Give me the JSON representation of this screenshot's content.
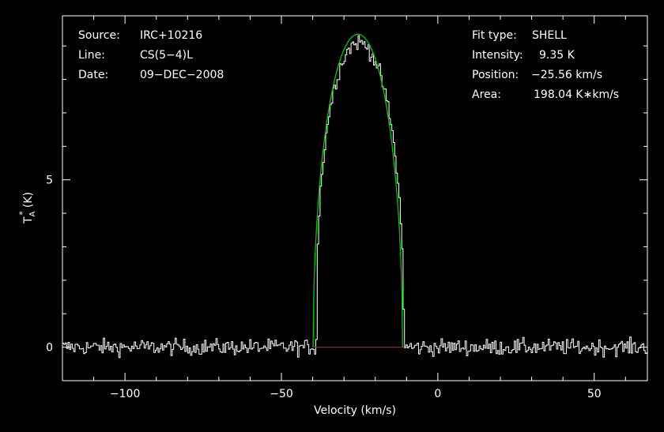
{
  "info": {
    "source_label": "Source:",
    "source_value": "IRC+10216",
    "line_label": "Line:",
    "line_value": "CS(5−4)L",
    "date_label": "Date:",
    "date_value": "09−DEC−2008",
    "fit_label": "Fit type:",
    "fit_value": "SHELL",
    "intensity_label": "Intensity:",
    "intensity_value": "9.35 K",
    "position_label": "Position:",
    "position_value": "−25.56 km/s",
    "area_label": "Area:",
    "area_value": "198.04 K∗km/s"
  },
  "chart_data": {
    "type": "line",
    "xlabel": "Velocity (km/s)",
    "ylabel_main": "T",
    "ylabel_super": "*",
    "ylabel_sub": "A",
    "ylabel_unit": "(K)",
    "xlim": [
      -120,
      67
    ],
    "ylim": [
      -1.0,
      9.9
    ],
    "xticks": [
      -100,
      -50,
      0,
      50
    ],
    "xtick_labels": [
      "−100",
      "−50",
      "0",
      "50"
    ],
    "yticks": [
      0,
      5
    ],
    "ytick_labels": [
      "0",
      "5"
    ],
    "series": [
      {
        "role": "spectrum",
        "color": "#ffffff",
        "noise_rms": 0.12,
        "channel_width": 0.45,
        "line_edges": [
          -39.0,
          -11.0
        ]
      },
      {
        "role": "shell-fit",
        "color": "#00c800",
        "center": -25.56,
        "half_width": 14.3,
        "peak": 9.35,
        "area": 198.04
      },
      {
        "role": "baseline",
        "color": "#e00000",
        "x": [
          -40,
          -11
        ],
        "y": [
          0,
          0
        ]
      }
    ],
    "grid": false
  }
}
